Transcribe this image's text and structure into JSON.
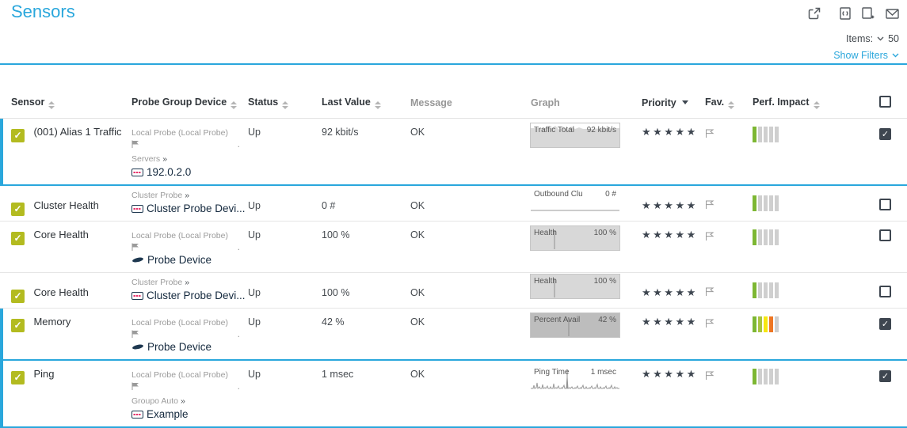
{
  "page": {
    "title": "Sensors",
    "items_label": "Items:",
    "items_count": "50",
    "show_filters_label": "Show Filters",
    "accent_color": "#2aa7dc"
  },
  "icons": {
    "check": "✓",
    "star": "★",
    "group_chevron": "»",
    "truncation_dot": ".",
    "toolbar": [
      "external-link",
      "xml-export",
      "add-report",
      "email"
    ]
  },
  "colors": {
    "sensor_checkbox_green": "#b3bb20",
    "selected_row_blue": "#2aa7dc",
    "star_dark": "#3e4650",
    "perf_green": "#7db733",
    "perf_yellow_green": "#a9c43e",
    "perf_yellow": "#f6e711",
    "perf_orange": "#ee7623",
    "perf_gray": "#cfcfcf"
  },
  "table": {
    "headers": [
      {
        "key": "sensor",
        "label": "Sensor",
        "sort": "both"
      },
      {
        "key": "probe-group-device",
        "label": "Probe Group Device",
        "sort": "both"
      },
      {
        "key": "status",
        "label": "Status",
        "sort": "both"
      },
      {
        "key": "last-value",
        "label": "Last Value",
        "sort": "both"
      },
      {
        "key": "message",
        "label": "Message",
        "sort": null,
        "muted": true
      },
      {
        "key": "graph",
        "label": "Graph",
        "sort": null,
        "muted": true
      },
      {
        "key": "priority",
        "label": "Priority",
        "sort": "desc"
      },
      {
        "key": "fav",
        "label": "Fav.",
        "sort": "both"
      },
      {
        "key": "perf-impact",
        "label": "Perf. Impact",
        "sort": "both"
      },
      {
        "key": "checkbox",
        "label": "",
        "checkbox": true
      }
    ],
    "rows": [
      {
        "name": "(001) Alias 1 Traffic",
        "probe": "Local Probe (Local Probe)",
        "group": "Servers",
        "device": "192.0.2.0",
        "device_icon": "device",
        "status": "Up",
        "last_value": "92 kbit/s",
        "message": "OK",
        "graph": {
          "label": "Traffic Total",
          "value": "92 kbit/s",
          "style": "area-jagged"
        },
        "priority": 5,
        "perf_impact": [
          "#7db733",
          "#cfcfcf",
          "#cfcfcf",
          "#cfcfcf",
          "#cfcfcf"
        ],
        "checked": true,
        "selected": true
      },
      {
        "name": "Cluster Health",
        "probe": null,
        "group": "Cluster Probe",
        "device": "Cluster Probe Devi...",
        "device_icon": "device",
        "status": "Up",
        "last_value": "0 #",
        "message": "OK",
        "graph": {
          "label": "Outbound Clu",
          "value": "0 #",
          "style": "baseline"
        },
        "priority": 5,
        "perf_impact": [
          "#7db733",
          "#cfcfcf",
          "#cfcfcf",
          "#cfcfcf",
          "#cfcfcf"
        ],
        "checked": false,
        "selected": false
      },
      {
        "name": "Core Health",
        "probe": "Local Probe (Local Probe)",
        "group": null,
        "device": "Probe Device",
        "device_icon": "probe",
        "status": "Up",
        "last_value": "100 %",
        "message": "OK",
        "graph": {
          "label": "Health",
          "value": "100 %",
          "style": "area-full",
          "tick_x": 30
        },
        "priority": 5,
        "perf_impact": [
          "#7db733",
          "#cfcfcf",
          "#cfcfcf",
          "#cfcfcf",
          "#cfcfcf"
        ],
        "checked": false,
        "selected": false
      },
      {
        "name": "Core Health",
        "probe": null,
        "group": "Cluster Probe",
        "device": "Cluster Probe Devi...",
        "device_icon": "device",
        "status": "Up",
        "last_value": "100 %",
        "message": "OK",
        "graph": {
          "label": "Health",
          "value": "100 %",
          "style": "area-full",
          "tick_x": 30
        },
        "priority": 5,
        "perf_impact": [
          "#7db733",
          "#cfcfcf",
          "#cfcfcf",
          "#cfcfcf",
          "#cfcfcf"
        ],
        "checked": false,
        "selected": false
      },
      {
        "name": "Memory",
        "probe": "Local Probe (Local Probe)",
        "group": null,
        "device": "Probe Device",
        "device_icon": "probe",
        "status": "Up",
        "last_value": "42 %",
        "message": "OK",
        "graph": {
          "label": "Percent Avail",
          "value": "42 %",
          "style": "area-dark",
          "tick_x": 48
        },
        "priority": 5,
        "perf_impact": [
          "#7db733",
          "#a9c43e",
          "#f6e711",
          "#ee7623",
          "#cfcfcf"
        ],
        "checked": true,
        "selected": true
      },
      {
        "name": "Ping",
        "probe": "Local Probe (Local Probe)",
        "group": "Groupo Auto",
        "device": "Example",
        "device_icon": "device",
        "status": "Up",
        "last_value": "1 msec",
        "message": "OK",
        "graph": {
          "label": "Ping Time",
          "value": "1 msec",
          "style": "spiky",
          "tick_x": 46
        },
        "priority": 5,
        "perf_impact": [
          "#7db733",
          "#cfcfcf",
          "#cfcfcf",
          "#cfcfcf",
          "#cfcfcf"
        ],
        "checked": true,
        "selected": true
      }
    ]
  }
}
